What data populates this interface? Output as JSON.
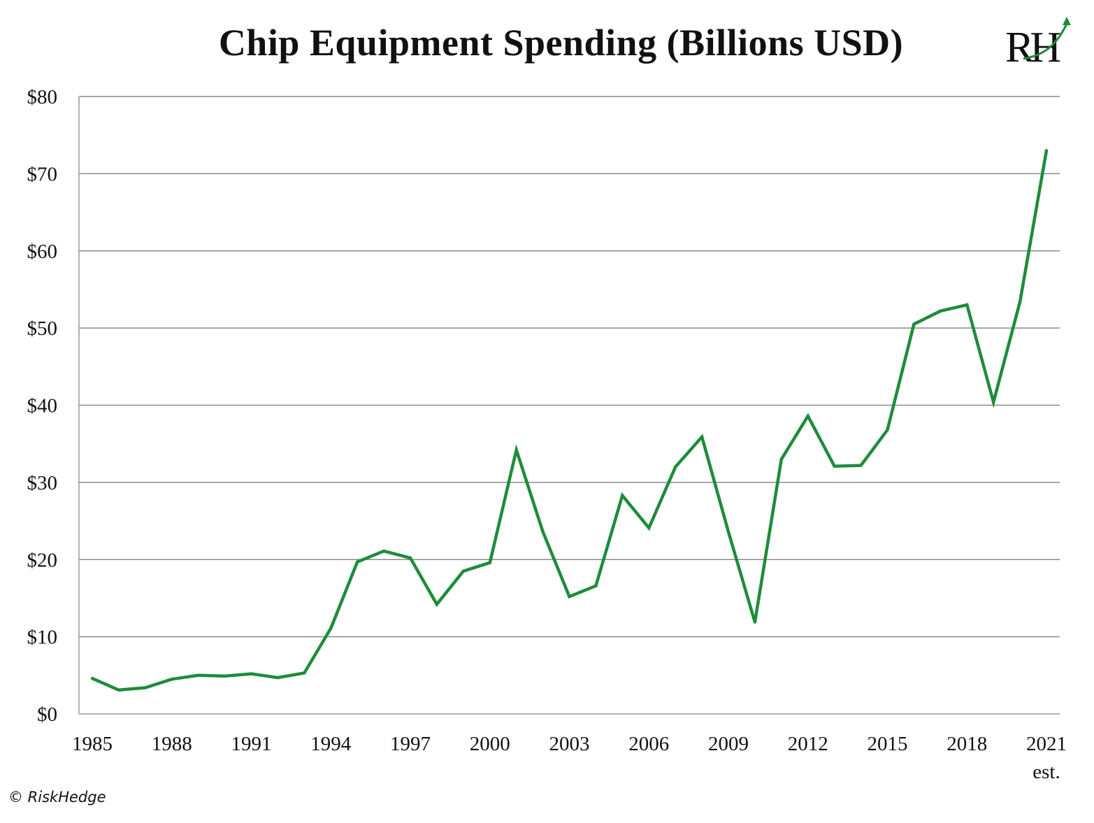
{
  "colors": {
    "line": "#1e8c3a",
    "grid": "#8a8a8a",
    "axis": "#9a9a9a",
    "text": "#111111"
  },
  "logo": {
    "text": "RH",
    "icon": "arrow-up-icon"
  },
  "copyright": "© RiskHedge",
  "chart_data": {
    "type": "line",
    "title": "Chip Equipment Spending (Billions USD)",
    "xlabel": "",
    "ylabel": "",
    "ylim": [
      0,
      80
    ],
    "xlim": [
      1985,
      2021
    ],
    "grid": true,
    "legend": "none",
    "y_ticks": [
      0,
      10,
      20,
      30,
      40,
      50,
      60,
      70,
      80
    ],
    "y_tick_labels": [
      "$0",
      "$10",
      "$20",
      "$30",
      "$40",
      "$50",
      "$60",
      "$70",
      "$80"
    ],
    "x_ticks": [
      1985,
      1988,
      1991,
      1994,
      1997,
      2000,
      2003,
      2006,
      2009,
      2012,
      2015,
      2018,
      2021
    ],
    "x_tick_labels": [
      "1985",
      "1988",
      "1991",
      "1994",
      "1997",
      "2000",
      "2003",
      "2006",
      "2009",
      "2012",
      "2015",
      "2018",
      "2021"
    ],
    "x_annotation": {
      "x": 2021,
      "text": "est."
    },
    "series": [
      {
        "x": [
          1985,
          1986,
          1987,
          1988,
          1989,
          1990,
          1991,
          1992,
          1993,
          1994,
          1995,
          1996,
          1997,
          1998,
          1999,
          2000,
          2001,
          2002,
          2003,
          2004,
          2005,
          2006,
          2007,
          2008,
          2009,
          2010,
          2011,
          2012,
          2013,
          2014,
          2015,
          2016,
          2017,
          2018,
          2019,
          2020,
          2021
        ],
        "values": [
          4.6,
          3.1,
          3.4,
          4.5,
          5.0,
          4.9,
          5.2,
          4.7,
          5.3,
          11.1,
          19.7,
          21.1,
          20.2,
          14.2,
          18.5,
          19.6,
          34.2,
          23.6,
          15.2,
          16.6,
          28.3,
          24.1,
          32.0,
          35.9,
          23.6,
          11.9,
          33.0,
          38.6,
          32.1,
          32.2,
          36.8,
          50.5,
          52.2,
          53.0,
          40.4,
          53.4,
          73.0
        ]
      }
    ]
  }
}
